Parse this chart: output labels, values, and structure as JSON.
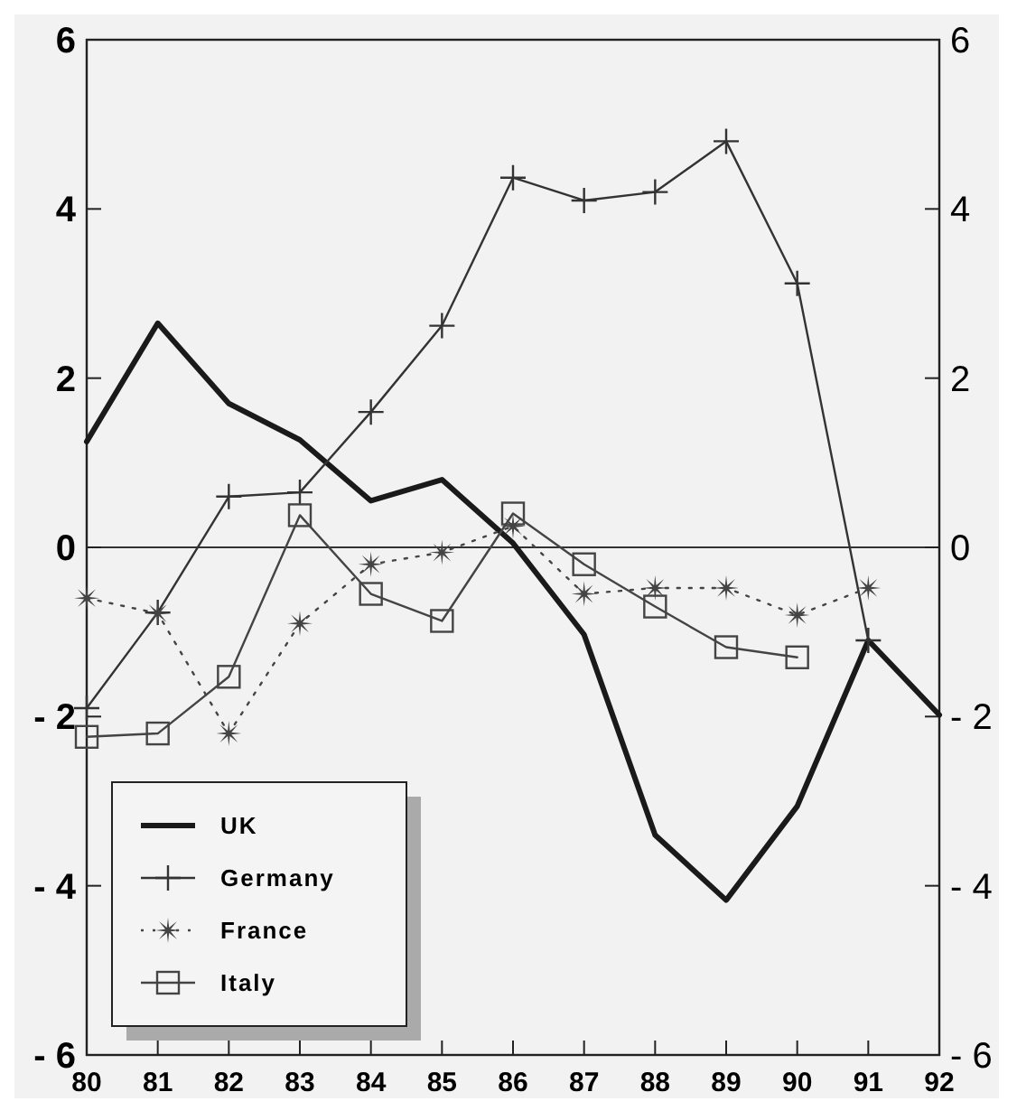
{
  "chart_data": {
    "type": "line",
    "x": [
      80,
      81,
      82,
      83,
      84,
      85,
      86,
      87,
      88,
      89,
      90,
      91,
      92
    ],
    "xlim": [
      80,
      92
    ],
    "xticks": [
      80,
      81,
      82,
      83,
      84,
      85,
      86,
      87,
      88,
      89,
      90,
      91,
      92
    ],
    "ylim": [
      -6,
      6
    ],
    "yticks": [
      -6,
      -4,
      -2,
      0,
      2,
      4,
      6
    ],
    "y2lim": [
      -6,
      6
    ],
    "y2ticks": [
      -6,
      -4,
      -2,
      0,
      2,
      4,
      6
    ],
    "series": [
      {
        "name": "UK",
        "color": "#1a1a1a",
        "marker": "none",
        "line_style": "solid",
        "values": [
          1.25,
          2.65,
          1.7,
          1.27,
          0.55,
          0.8,
          0.05,
          -1.03,
          -3.4,
          -4.17,
          -3.06,
          -1.1,
          -1.98
        ]
      },
      {
        "name": "Germany",
        "color": "#333333",
        "marker": "cross",
        "line_style": "solid",
        "values": [
          -1.9,
          -0.77,
          0.6,
          0.65,
          1.6,
          2.62,
          4.37,
          4.1,
          4.2,
          4.8,
          3.12,
          -1.1,
          null
        ]
      },
      {
        "name": "France",
        "color": "#444444",
        "marker": "star",
        "line_style": "dotted",
        "values": [
          -0.6,
          -0.78,
          -2.2,
          -0.9,
          -0.2,
          -0.06,
          0.25,
          -0.55,
          -0.48,
          -0.48,
          -0.8,
          -0.48,
          null
        ]
      },
      {
        "name": "Italy",
        "color": "#444444",
        "marker": "square",
        "line_style": "solid",
        "values": [
          -2.24,
          -2.2,
          -1.53,
          0.38,
          -0.55,
          -0.87,
          0.4,
          -0.2,
          -0.7,
          -1.18,
          -1.3,
          null,
          null
        ]
      }
    ],
    "ref_lines": [
      {
        "axis": "y",
        "value": 0,
        "color": "#333333",
        "line_style": "solid"
      }
    ],
    "legend": "bottom left",
    "grid": false
  }
}
